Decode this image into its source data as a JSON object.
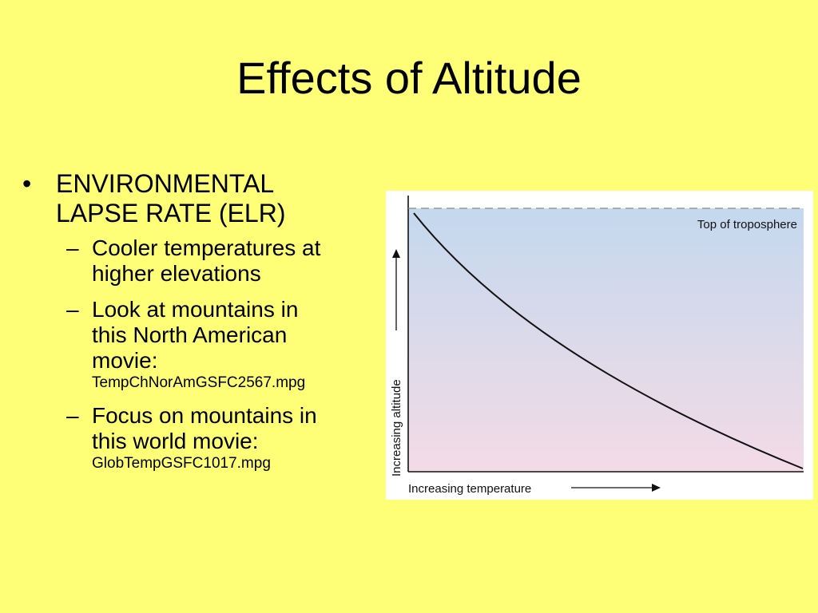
{
  "slide": {
    "title": "Effects of Altitude",
    "bullet_mark": "•",
    "sub_mark": "–",
    "bullet": {
      "line1": "ENVIRONMENTAL",
      "line2": "LAPSE RATE (ELR)"
    },
    "subbullets": [
      {
        "lines": [
          "Cooler temperatures at",
          "higher elevations"
        ],
        "file": ""
      },
      {
        "lines": [
          "Look at mountains in",
          "this North American",
          "movie:"
        ],
        "file": "TempChNorAmGSFC2567.mpg"
      },
      {
        "lines": [
          "Focus on mountains in",
          "this world movie:"
        ],
        "file": "GlobTempGSFC1017.mpg"
      }
    ]
  },
  "diagram": {
    "tropopause_label": "Top of troposphere",
    "x_axis_label": "Increasing temperature",
    "y_axis_label": "Increasing altitude",
    "colors": {
      "background_top": "#c4d8ee",
      "background_bottom": "#f3dbe6",
      "curve": "#111111",
      "tropopause_line": "#8a8a8a"
    }
  }
}
